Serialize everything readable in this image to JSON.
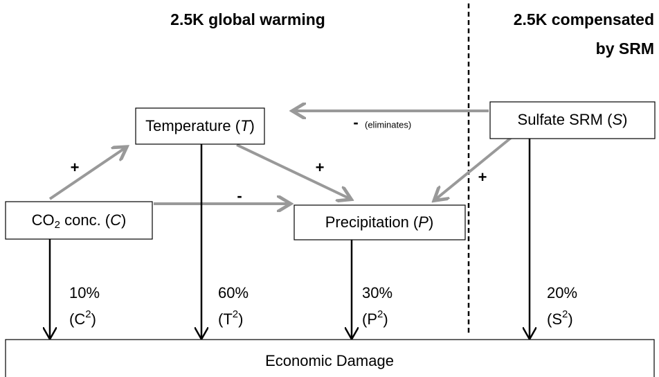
{
  "header": {
    "left": "2.5K global warming",
    "right": [
      "2.5K compensated",
      "by SRM"
    ]
  },
  "nodes": {
    "temperature": [
      "Temperature (",
      "T",
      ")"
    ],
    "sulfate": [
      "Sulfate SRM (",
      "S",
      ")"
    ],
    "co2": [
      "CO",
      "2",
      " conc. (",
      "C",
      ")"
    ],
    "precipitation": [
      "Precipitation (",
      "P",
      ")"
    ],
    "damage": "Economic Damage"
  },
  "edges": {
    "co2_temperature": "+",
    "temperature_precipitation": "+",
    "co2_precipitation": "-",
    "sulfate_precipitation": "+",
    "sulfate_temperature": [
      "-",
      "(eliminates)"
    ]
  },
  "damage_shares": [
    {
      "share": "10%",
      "term": [
        "(C",
        "2",
        ")"
      ]
    },
    {
      "share": "60%",
      "term": [
        "(T",
        "2",
        ")"
      ]
    },
    {
      "share": "30%",
      "term": [
        "(P",
        "2",
        ")"
      ]
    },
    {
      "share": "20%",
      "term": [
        "(S",
        "2",
        ")"
      ]
    }
  ]
}
